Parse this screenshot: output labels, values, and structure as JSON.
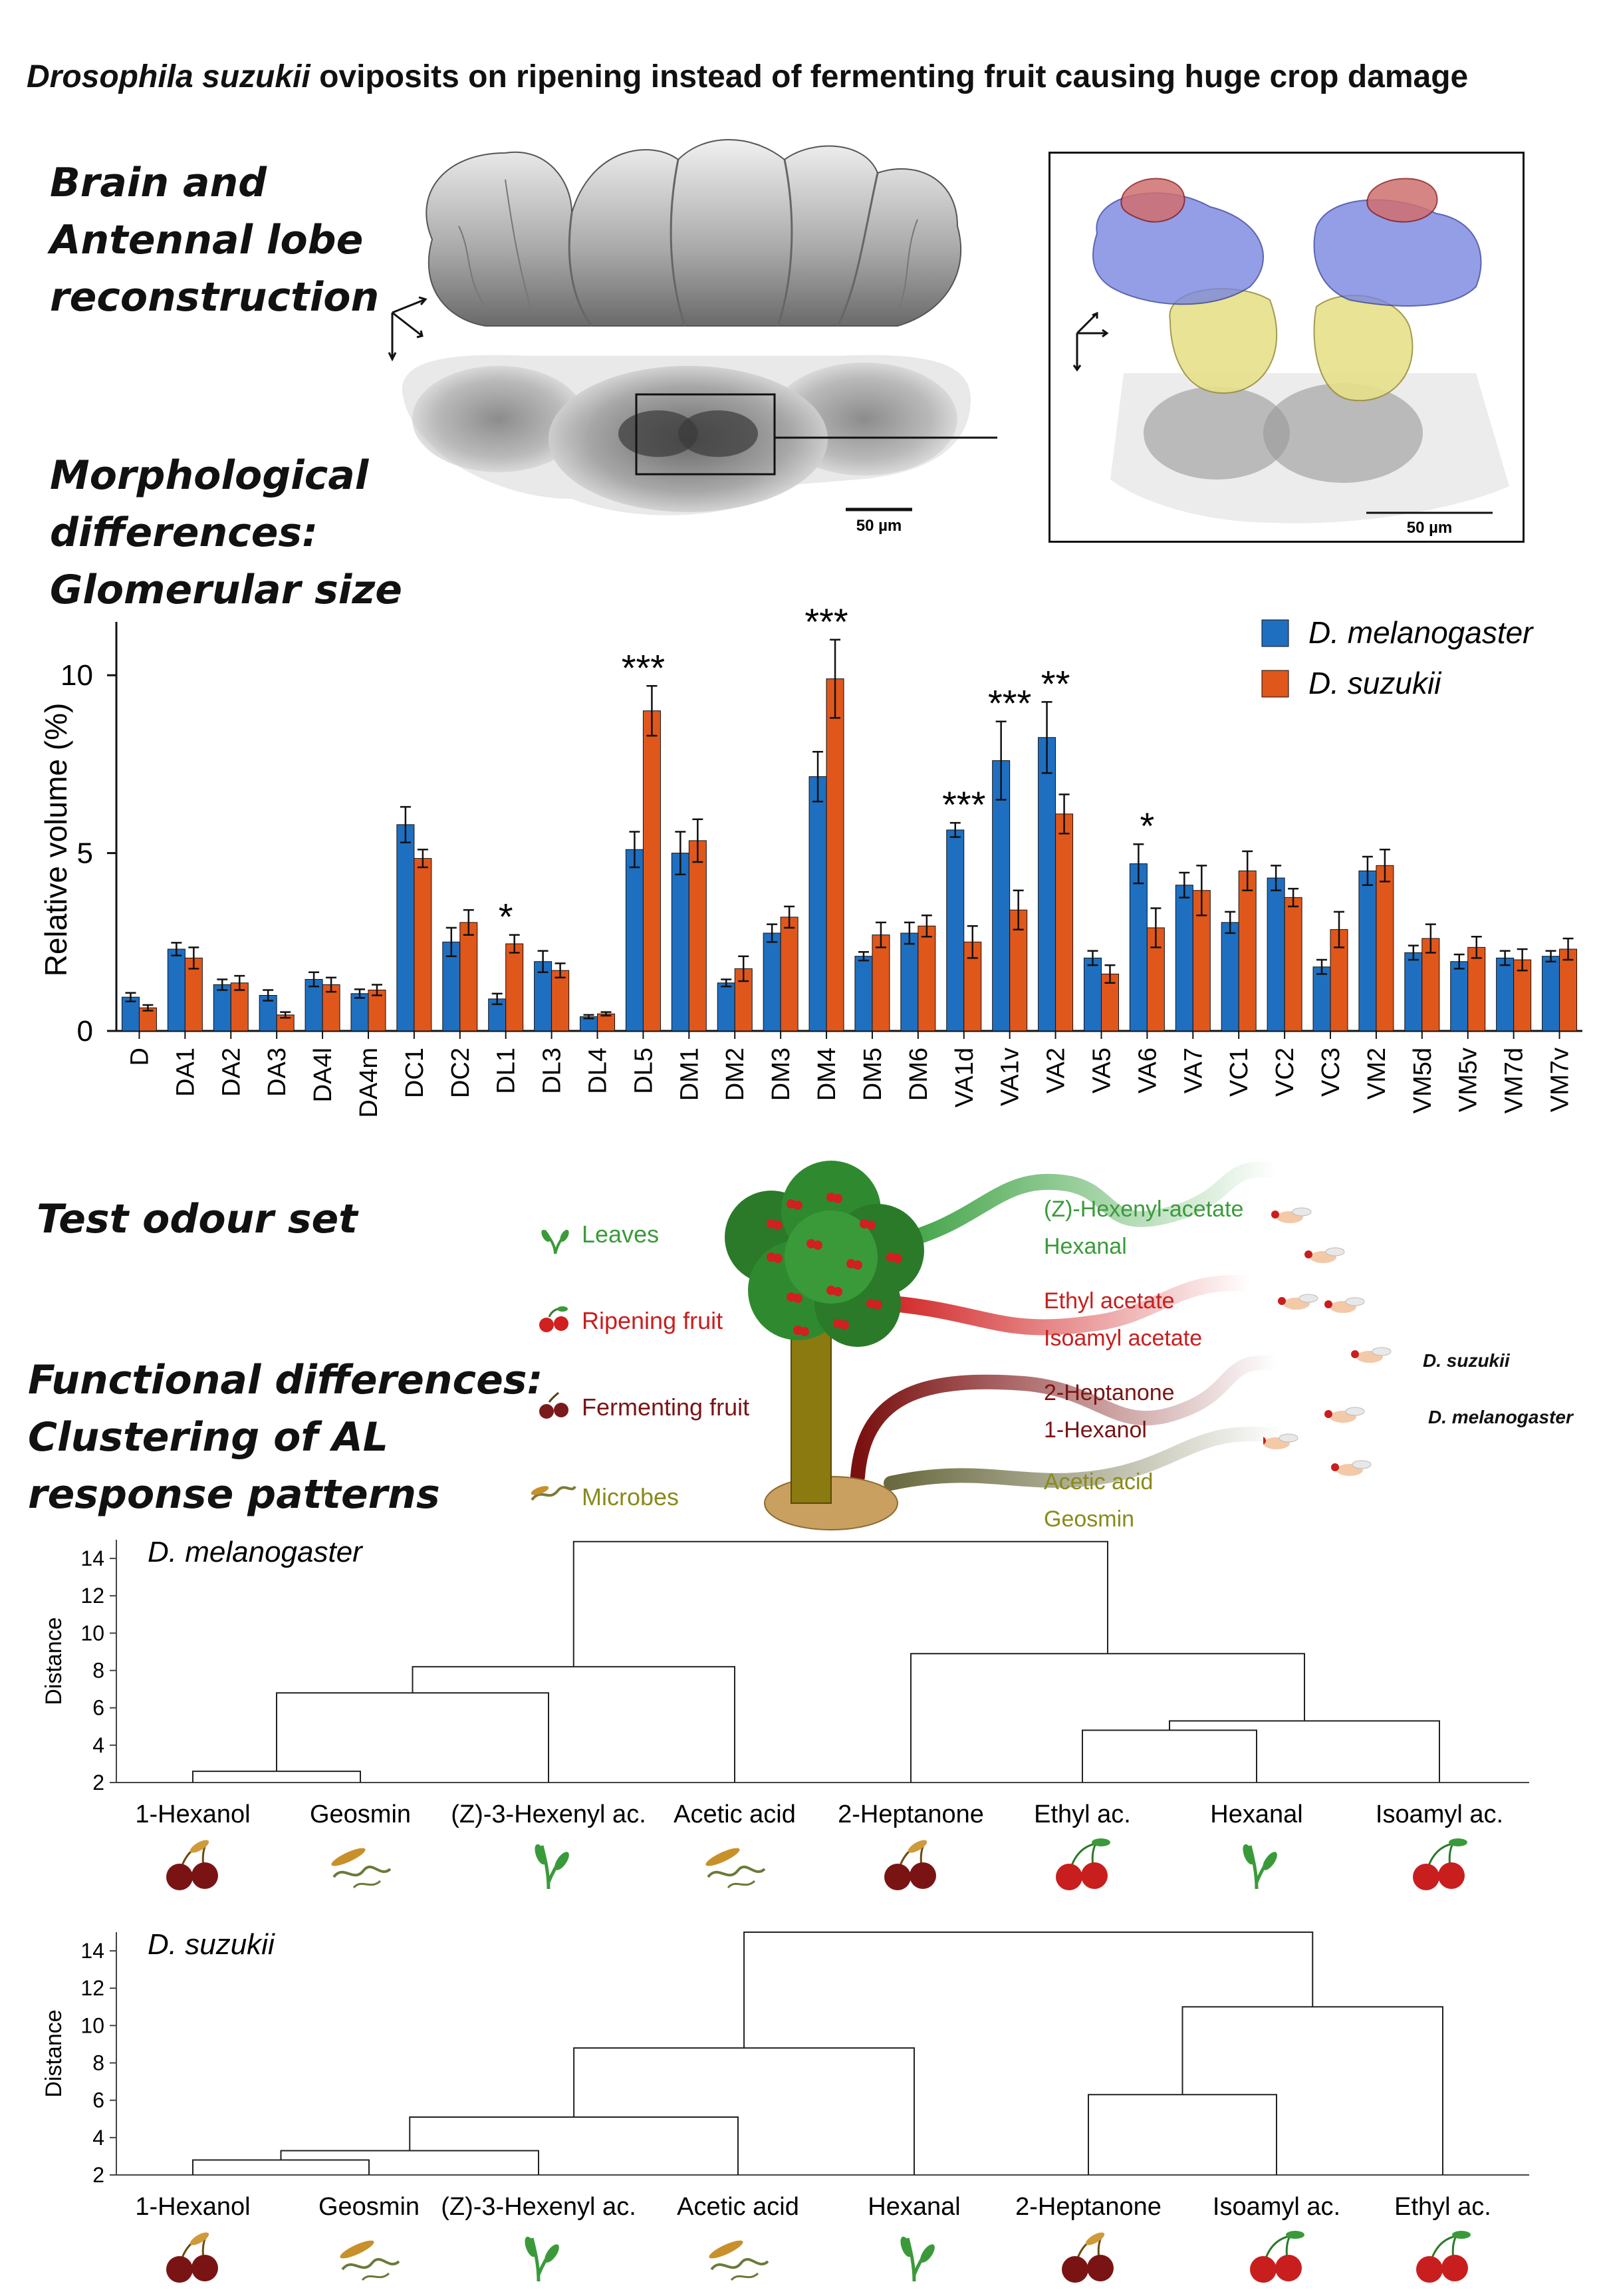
{
  "title_species": "Drosophila suzukii",
  "title_rest": "oviposits on ripening instead of fermenting fruit causing huge crop damage",
  "sections": {
    "reconstruction": [
      "Brain and",
      "Antennal lobe",
      "reconstruction"
    ],
    "morphology": [
      "Morphological",
      "differences:",
      "Glomerular size"
    ],
    "odours": [
      "Test odour set"
    ],
    "functional": [
      "Functional differences:",
      "Clustering of AL",
      "response patterns"
    ]
  },
  "scalebar_left": "50 µm",
  "scalebar_right": "50 µm",
  "colors": {
    "melanogaster": "#1f6fc0",
    "suzukii": "#e0571c",
    "leaves": "#3a9a3a",
    "ripening": "#c81e1e",
    "fermenting": "#7a1414",
    "microbes": "#8a8a1a"
  },
  "chart_data": [
    {
      "type": "bar",
      "title": "",
      "ylabel": "Relative volume (%)",
      "xlabel": "",
      "ylim": [
        0,
        11.5
      ],
      "yticks": [
        0,
        5,
        10
      ],
      "legend_position": "top-right",
      "categories": [
        "D",
        "DA1",
        "DA2",
        "DA3",
        "DA4l",
        "DA4m",
        "DC1",
        "DC2",
        "DL1",
        "DL3",
        "DL4",
        "DL5",
        "DM1",
        "DM2",
        "DM3",
        "DM4",
        "DM5",
        "DM6",
        "VA1d",
        "VA1v",
        "VA2",
        "VA5",
        "VA6",
        "VA7",
        "VC1",
        "VC2",
        "VC3",
        "VM2",
        "VM5d",
        "VM5v",
        "VM7d",
        "VM7v"
      ],
      "series": [
        {
          "name": "D. melanogaster",
          "values": [
            0.95,
            2.3,
            1.3,
            1.0,
            1.45,
            1.05,
            5.8,
            2.5,
            0.9,
            1.95,
            0.4,
            5.1,
            5.0,
            1.35,
            2.75,
            7.15,
            2.1,
            2.75,
            5.65,
            7.6,
            8.25,
            2.05,
            4.7,
            4.1,
            3.05,
            4.3,
            1.8,
            4.5,
            2.2,
            1.95,
            2.05,
            2.1
          ],
          "errors": [
            0.12,
            0.18,
            0.15,
            0.15,
            0.2,
            0.12,
            0.5,
            0.4,
            0.15,
            0.3,
            0.05,
            0.5,
            0.6,
            0.1,
            0.25,
            0.7,
            0.12,
            0.3,
            0.2,
            1.1,
            1.0,
            0.2,
            0.55,
            0.35,
            0.3,
            0.35,
            0.2,
            0.4,
            0.2,
            0.2,
            0.2,
            0.15
          ]
        },
        {
          "name": "D. suzukii",
          "values": [
            0.65,
            2.05,
            1.35,
            0.45,
            1.3,
            1.15,
            4.85,
            3.05,
            2.45,
            1.7,
            0.48,
            9.0,
            5.35,
            1.75,
            3.2,
            9.9,
            2.7,
            2.95,
            2.5,
            3.4,
            6.1,
            1.6,
            2.9,
            3.95,
            4.5,
            3.75,
            2.85,
            4.65,
            2.6,
            2.35,
            2.0,
            2.3
          ],
          "errors": [
            0.08,
            0.3,
            0.2,
            0.08,
            0.2,
            0.15,
            0.25,
            0.35,
            0.25,
            0.2,
            0.05,
            0.7,
            0.6,
            0.35,
            0.3,
            1.1,
            0.35,
            0.3,
            0.45,
            0.55,
            0.55,
            0.25,
            0.55,
            0.7,
            0.55,
            0.25,
            0.5,
            0.45,
            0.4,
            0.3,
            0.3,
            0.3
          ]
        }
      ],
      "annotations": [
        {
          "category": "DL1",
          "text": "*"
        },
        {
          "category": "DL5",
          "text": "***"
        },
        {
          "category": "DM4",
          "text": "***"
        },
        {
          "category": "VA1d",
          "text": "***"
        },
        {
          "category": "VA1v",
          "text": "***"
        },
        {
          "category": "VA2",
          "text": "**"
        },
        {
          "category": "VA6",
          "text": "*"
        }
      ]
    },
    {
      "type": "dendrogram",
      "title": "D. melanogaster",
      "ylabel": "Distance",
      "xlabel": "",
      "ylim": [
        2,
        15
      ],
      "yticks": [
        2,
        4,
        6,
        8,
        10,
        12,
        14
      ],
      "leaves": [
        "1-Hexanol",
        "Geosmin",
        "(Z)-3-Hexenyl ac.",
        "Acetic acid",
        "2-Heptanone",
        "Ethyl ac.",
        "Hexanal",
        "Isoamyl ac."
      ],
      "leaf_classes": [
        "fermenting",
        "microbes",
        "leaves",
        "microbes",
        "fermenting",
        "ripening",
        "leaves",
        "ripening"
      ],
      "merges": [
        {
          "left": 0,
          "right": 1,
          "height": 2.6
        },
        {
          "left": 5,
          "right": 6,
          "height": 4.8
        },
        {
          "left": 9,
          "right": 7,
          "height": 5.3
        },
        {
          "left": 8,
          "right": 2,
          "height": 6.8
        },
        {
          "left": 11,
          "right": 3,
          "height": 8.2
        },
        {
          "left": 4,
          "right": 10,
          "height": 8.9
        },
        {
          "left": 12,
          "right": 13,
          "height": 14.9
        }
      ]
    },
    {
      "type": "dendrogram",
      "title": "D. suzukii",
      "ylabel": "Distance",
      "xlabel": "",
      "ylim": [
        2,
        15
      ],
      "yticks": [
        2,
        4,
        6,
        8,
        10,
        12,
        14
      ],
      "leaves": [
        "1-Hexanol",
        "Geosmin",
        "(Z)-3-Hexenyl ac.",
        "Acetic acid",
        "Hexanal",
        "2-Heptanone",
        "Isoamyl ac.",
        "Ethyl ac."
      ],
      "leaf_classes": [
        "fermenting",
        "microbes",
        "leaves",
        "microbes",
        "leaves",
        "fermenting",
        "ripening",
        "ripening"
      ],
      "merges": [
        {
          "left": 0,
          "right": 1,
          "height": 2.8
        },
        {
          "left": 8,
          "right": 2,
          "height": 3.3
        },
        {
          "left": 9,
          "right": 3,
          "height": 5.1
        },
        {
          "left": 5,
          "right": 6,
          "height": 6.3
        },
        {
          "left": 10,
          "right": 4,
          "height": 8.8
        },
        {
          "left": 11,
          "right": 7,
          "height": 11.0
        },
        {
          "left": 12,
          "right": 13,
          "height": 15.0
        }
      ]
    }
  ],
  "odour_set": {
    "categories": [
      {
        "label": "Leaves",
        "class": "leaves",
        "compounds": [
          "(Z)-Hexenyl-acetate",
          "Hexanal"
        ]
      },
      {
        "label": "Ripening fruit",
        "class": "ripening",
        "compounds": [
          "Ethyl acetate",
          "Isoamyl acetate"
        ]
      },
      {
        "label": "Fermenting fruit",
        "class": "fermenting",
        "compounds": [
          "2-Heptanone",
          "1-Hexanol"
        ]
      },
      {
        "label": "Microbes",
        "class": "microbes",
        "compounds": [
          "Acetic acid",
          "Geosmin"
        ]
      }
    ],
    "fly_labels": [
      "D. suzukii",
      "D. melanogaster"
    ]
  }
}
